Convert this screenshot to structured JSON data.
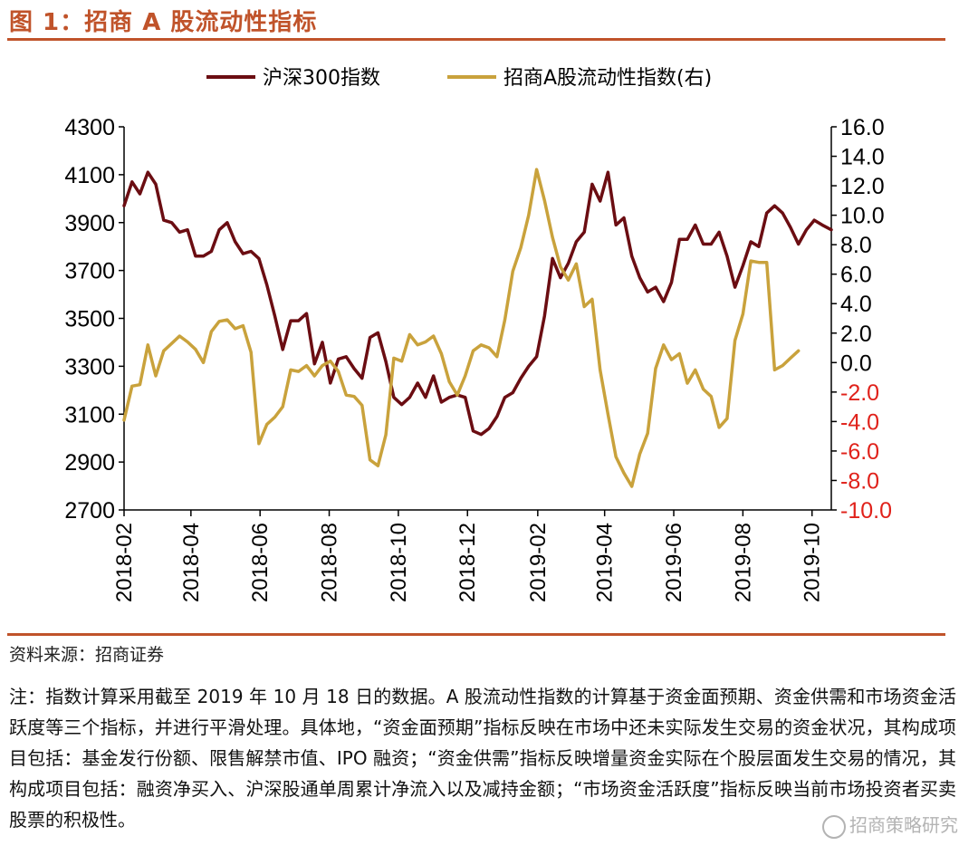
{
  "figure": {
    "title": "图 1：招商 A 股流动性指标",
    "source": "资料来源：招商证券",
    "note": "注：指数计算采用截至 2019 年 10 月 18 日的数据。A 股流动性指数的计算基于资金面预期、资金供需和市场资金活跃度等三个指标，并进行平滑处理。具体地，“资金面预期”指标反映在市场中还未实际发生交易的资金状况，其构成项目包括：基金发行份额、限售解禁市值、IPO 融资；“资金供需”指标反映增量资金实际在个股层面发生交易的情况，其构成项目包括：融资净买入、沪深股通单周累计净流入以及减持金额；“市场资金活跃度”指标反映当前市场投资者买卖股票的积极性。",
    "watermark": "招商策略研究"
  },
  "colors": {
    "accent": "#c0532a",
    "series1": "#6b0d12",
    "series2": "#c9a23c",
    "negative": "#e0211a"
  },
  "chart_data": {
    "type": "line",
    "legend_position": "top",
    "grid": false,
    "x_ticks": [
      "2018-02",
      "2018-04",
      "2018-06",
      "2018-08",
      "2018-10",
      "2018-12",
      "2019-02",
      "2019-04",
      "2019-06",
      "2019-08",
      "2019-10"
    ],
    "x_range": [
      "2018-02-01",
      "2019-10-18"
    ],
    "y_left": {
      "min": 2700,
      "max": 4300,
      "ticks": [
        "4300",
        "4100",
        "3900",
        "3700",
        "3500",
        "3300",
        "3100",
        "2900",
        "2700"
      ]
    },
    "y_right": {
      "min": -10,
      "max": 16,
      "ticks": [
        "16.0",
        "14.0",
        "12.0",
        "10.0",
        "8.0",
        "6.0",
        "4.0",
        "2.0",
        "0.0",
        "-2.0",
        "-4.0",
        "-6.0",
        "-8.0",
        "-10.0"
      ]
    },
    "series": [
      {
        "name": "沪深300指数",
        "axis": "left",
        "points": [
          [
            "2018-02-01",
            3970
          ],
          [
            "2018-02-08",
            4070
          ],
          [
            "2018-02-15",
            4020
          ],
          [
            "2018-02-22",
            4110
          ],
          [
            "2018-03-01",
            4060
          ],
          [
            "2018-03-08",
            3910
          ],
          [
            "2018-03-15",
            3900
          ],
          [
            "2018-03-22",
            3860
          ],
          [
            "2018-03-29",
            3870
          ],
          [
            "2018-04-05",
            3760
          ],
          [
            "2018-04-12",
            3760
          ],
          [
            "2018-04-19",
            3780
          ],
          [
            "2018-04-26",
            3870
          ],
          [
            "2018-05-03",
            3900
          ],
          [
            "2018-05-10",
            3820
          ],
          [
            "2018-05-17",
            3770
          ],
          [
            "2018-05-24",
            3780
          ],
          [
            "2018-05-31",
            3750
          ],
          [
            "2018-06-07",
            3640
          ],
          [
            "2018-06-14",
            3510
          ],
          [
            "2018-06-21",
            3370
          ],
          [
            "2018-06-28",
            3490
          ],
          [
            "2018-07-05",
            3490
          ],
          [
            "2018-07-12",
            3520
          ],
          [
            "2018-07-19",
            3310
          ],
          [
            "2018-07-26",
            3400
          ],
          [
            "2018-08-02",
            3230
          ],
          [
            "2018-08-09",
            3330
          ],
          [
            "2018-08-16",
            3340
          ],
          [
            "2018-08-23",
            3290
          ],
          [
            "2018-08-30",
            3250
          ],
          [
            "2018-09-06",
            3420
          ],
          [
            "2018-09-13",
            3440
          ],
          [
            "2018-09-20",
            3320
          ],
          [
            "2018-09-27",
            3170
          ],
          [
            "2018-10-04",
            3140
          ],
          [
            "2018-10-11",
            3170
          ],
          [
            "2018-10-18",
            3230
          ],
          [
            "2018-10-25",
            3170
          ],
          [
            "2018-11-01",
            3260
          ],
          [
            "2018-11-08",
            3150
          ],
          [
            "2018-11-15",
            3170
          ],
          [
            "2018-11-22",
            3180
          ],
          [
            "2018-11-29",
            3170
          ],
          [
            "2018-12-06",
            3030
          ],
          [
            "2018-12-13",
            3015
          ],
          [
            "2018-12-20",
            3040
          ],
          [
            "2018-12-27",
            3090
          ],
          [
            "2019-01-03",
            3170
          ],
          [
            "2019-01-10",
            3190
          ],
          [
            "2019-01-17",
            3250
          ],
          [
            "2019-01-24",
            3300
          ],
          [
            "2019-01-31",
            3340
          ],
          [
            "2019-02-07",
            3510
          ],
          [
            "2019-02-14",
            3750
          ],
          [
            "2019-02-21",
            3670
          ],
          [
            "2019-02-28",
            3730
          ],
          [
            "2019-03-07",
            3820
          ],
          [
            "2019-03-14",
            3860
          ],
          [
            "2019-03-21",
            4060
          ],
          [
            "2019-03-28",
            3990
          ],
          [
            "2019-04-04",
            4110
          ],
          [
            "2019-04-11",
            3890
          ],
          [
            "2019-04-18",
            3920
          ],
          [
            "2019-04-25",
            3760
          ],
          [
            "2019-05-02",
            3670
          ],
          [
            "2019-05-09",
            3610
          ],
          [
            "2019-05-16",
            3630
          ],
          [
            "2019-05-23",
            3570
          ],
          [
            "2019-05-30",
            3650
          ],
          [
            "2019-06-06",
            3830
          ],
          [
            "2019-06-13",
            3830
          ],
          [
            "2019-06-20",
            3890
          ],
          [
            "2019-06-27",
            3810
          ],
          [
            "2019-07-04",
            3810
          ],
          [
            "2019-07-11",
            3860
          ],
          [
            "2019-07-18",
            3760
          ],
          [
            "2019-07-25",
            3630
          ],
          [
            "2019-08-01",
            3720
          ],
          [
            "2019-08-08",
            3820
          ],
          [
            "2019-08-15",
            3800
          ],
          [
            "2019-08-22",
            3940
          ],
          [
            "2019-08-29",
            3970
          ],
          [
            "2019-09-05",
            3940
          ],
          [
            "2019-09-12",
            3880
          ],
          [
            "2019-09-19",
            3810
          ],
          [
            "2019-09-26",
            3870
          ],
          [
            "2019-10-03",
            3910
          ],
          [
            "2019-10-10",
            3890
          ],
          [
            "2019-10-18",
            3870
          ]
        ]
      },
      {
        "name": "招商A股流动性指数(右)",
        "axis": "right",
        "points": [
          [
            "2018-02-01",
            -3.9
          ],
          [
            "2018-02-08",
            -1.6
          ],
          [
            "2018-02-15",
            -1.5
          ],
          [
            "2018-02-22",
            1.2
          ],
          [
            "2018-03-01",
            -0.9
          ],
          [
            "2018-03-08",
            0.8
          ],
          [
            "2018-03-15",
            1.3
          ],
          [
            "2018-03-22",
            1.8
          ],
          [
            "2018-03-29",
            1.4
          ],
          [
            "2018-04-05",
            0.9
          ],
          [
            "2018-04-12",
            0.0
          ],
          [
            "2018-04-19",
            2.1
          ],
          [
            "2018-04-26",
            2.8
          ],
          [
            "2018-05-03",
            2.9
          ],
          [
            "2018-05-10",
            2.3
          ],
          [
            "2018-05-17",
            2.5
          ],
          [
            "2018-05-24",
            0.7
          ],
          [
            "2018-05-31",
            -5.5
          ],
          [
            "2018-06-07",
            -4.2
          ],
          [
            "2018-06-14",
            -3.7
          ],
          [
            "2018-06-21",
            -3.0
          ],
          [
            "2018-06-28",
            -0.5
          ],
          [
            "2018-07-05",
            -0.6
          ],
          [
            "2018-07-12",
            -0.2
          ],
          [
            "2018-07-19",
            -0.9
          ],
          [
            "2018-07-26",
            -0.2
          ],
          [
            "2018-08-02",
            0.1
          ],
          [
            "2018-08-09",
            -0.6
          ],
          [
            "2018-08-16",
            -2.2
          ],
          [
            "2018-08-23",
            -2.3
          ],
          [
            "2018-08-30",
            -2.9
          ],
          [
            "2018-09-06",
            -6.6
          ],
          [
            "2018-09-13",
            -7.0
          ],
          [
            "2018-09-20",
            -4.9
          ],
          [
            "2018-09-27",
            0.3
          ],
          [
            "2018-10-04",
            0.1
          ],
          [
            "2018-10-11",
            1.9
          ],
          [
            "2018-10-18",
            1.2
          ],
          [
            "2018-10-25",
            1.4
          ],
          [
            "2018-11-01",
            1.8
          ],
          [
            "2018-11-08",
            0.6
          ],
          [
            "2018-11-15",
            -1.3
          ],
          [
            "2018-11-22",
            -2.2
          ],
          [
            "2018-11-29",
            -0.9
          ],
          [
            "2018-12-06",
            0.8
          ],
          [
            "2018-12-13",
            1.2
          ],
          [
            "2018-12-20",
            1.0
          ],
          [
            "2018-12-27",
            0.4
          ],
          [
            "2019-01-03",
            2.9
          ],
          [
            "2019-01-10",
            6.2
          ],
          [
            "2019-01-17",
            7.8
          ],
          [
            "2019-01-24",
            10.0
          ],
          [
            "2019-01-31",
            13.1
          ],
          [
            "2019-02-07",
            11.0
          ],
          [
            "2019-02-14",
            8.5
          ],
          [
            "2019-02-21",
            6.5
          ],
          [
            "2019-02-28",
            5.6
          ],
          [
            "2019-03-07",
            6.7
          ],
          [
            "2019-03-14",
            3.8
          ],
          [
            "2019-03-21",
            4.3
          ],
          [
            "2019-03-28",
            -0.5
          ],
          [
            "2019-04-04",
            -3.5
          ],
          [
            "2019-04-11",
            -6.4
          ],
          [
            "2019-04-18",
            -7.5
          ],
          [
            "2019-04-25",
            -8.4
          ],
          [
            "2019-05-02",
            -6.2
          ],
          [
            "2019-05-09",
            -4.8
          ],
          [
            "2019-05-16",
            -0.4
          ],
          [
            "2019-05-23",
            1.2
          ],
          [
            "2019-05-30",
            0.2
          ],
          [
            "2019-06-06",
            0.6
          ],
          [
            "2019-06-13",
            -1.4
          ],
          [
            "2019-06-20",
            -0.5
          ],
          [
            "2019-06-27",
            -1.8
          ],
          [
            "2019-07-04",
            -2.3
          ],
          [
            "2019-07-11",
            -4.4
          ],
          [
            "2019-07-18",
            -3.8
          ],
          [
            "2019-07-25",
            1.5
          ],
          [
            "2019-08-01",
            3.3
          ],
          [
            "2019-08-08",
            6.9
          ],
          [
            "2019-08-15",
            6.8
          ],
          [
            "2019-08-22",
            6.8
          ],
          [
            "2019-08-29",
            -0.5
          ],
          [
            "2019-09-05",
            -0.2
          ],
          [
            "2019-09-12",
            0.3
          ],
          [
            "2019-09-19",
            0.8
          ]
        ]
      }
    ]
  }
}
